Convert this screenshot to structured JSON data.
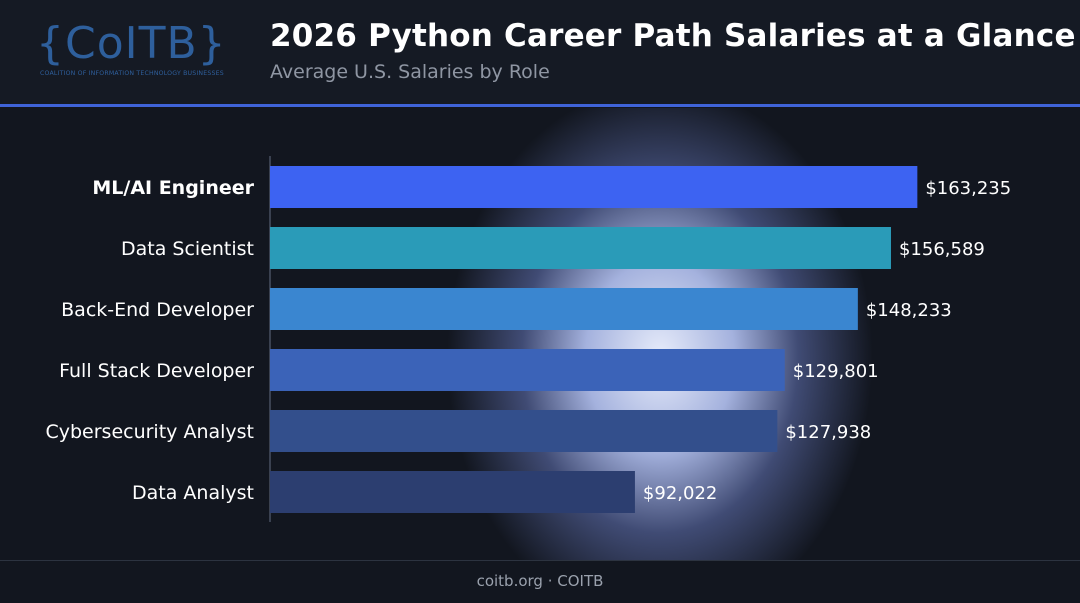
{
  "header": {
    "logo_text": "{CoITB}",
    "logo_subtext": "COALITION OF INFORMATION TECHNOLOGY BUSINESSES",
    "title": "2026 Python Career Path Salaries at a Glance",
    "subtitle": "Average U.S. Salaries by Role"
  },
  "footer": {
    "text": "coitb.org · COITB"
  },
  "chart_data": {
    "type": "bar",
    "orientation": "horizontal",
    "title": "2026 Python Career Path Salaries at a Glance",
    "subtitle": "Average U.S. Salaries by Role",
    "xlabel": "",
    "ylabel": "",
    "xlim": [
      0,
      175000
    ],
    "grid": false,
    "categories": [
      "ML/AI Engineer",
      "Data Scientist",
      "Back-End Developer",
      "Full Stack Developer",
      "Cybersecurity Analyst",
      "Data Analyst"
    ],
    "values": [
      163235,
      156589,
      148233,
      129801,
      127938,
      92022
    ],
    "value_labels": [
      "$163,235",
      "$156,589",
      "$148,233",
      "$129,801",
      "$127,938",
      "$92,022"
    ],
    "colors": [
      "#3d63f2",
      "#2a9bb8",
      "#3a86d0",
      "#3b63b8",
      "#334f8c",
      "#2c3e70"
    ]
  }
}
